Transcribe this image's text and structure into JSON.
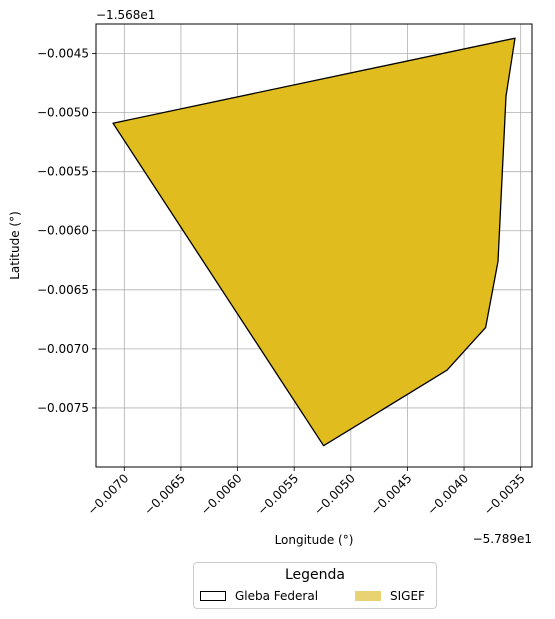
{
  "chart_data": {
    "type": "area",
    "xlabel": "Longitude (°)",
    "ylabel": "Latitude (°)",
    "x_offset_label": "−5.789e1",
    "y_offset_label": "−1.568e1",
    "xlim": [
      -0.00725,
      -0.0034
    ],
    "ylim": [
      -0.008,
      -0.00425
    ],
    "x_ticks": [
      -0.007,
      -0.0065,
      -0.006,
      -0.0055,
      -0.005,
      -0.0045,
      -0.004,
      -0.0035
    ],
    "x_tick_labels": [
      "−0.0070",
      "−0.0065",
      "−0.0060",
      "−0.0055",
      "−0.0050",
      "−0.0045",
      "−0.0040",
      "−0.0035"
    ],
    "y_ticks": [
      -0.0045,
      -0.005,
      -0.0055,
      -0.006,
      -0.0065,
      -0.007,
      -0.0075
    ],
    "y_tick_labels": [
      "−0.0045",
      "−0.0050",
      "−0.0055",
      "−0.0060",
      "−0.0065",
      "−0.0070",
      "−0.0075"
    ],
    "grid": true,
    "legend_position": "bottom-center",
    "series": [
      {
        "name": "SIGEF",
        "role": "fill",
        "color": "#e0bc1f",
        "legend_color": "#e8d272",
        "points": [
          [
            -0.0071,
            -0.00509
          ],
          [
            -0.00355,
            -0.00437
          ],
          [
            -0.00363,
            -0.00486
          ],
          [
            -0.0037,
            -0.00626
          ],
          [
            -0.00381,
            -0.00682
          ],
          [
            -0.00415,
            -0.00718
          ],
          [
            -0.00524,
            -0.00782
          ],
          [
            -0.0071,
            -0.00509
          ]
        ]
      },
      {
        "name": "Gleba Federal",
        "role": "outline",
        "color": "#000000",
        "points": [
          [
            -0.0071,
            -0.00509
          ],
          [
            -0.00355,
            -0.00437
          ],
          [
            -0.00363,
            -0.00486
          ],
          [
            -0.0037,
            -0.00626
          ],
          [
            -0.00381,
            -0.00682
          ],
          [
            -0.00415,
            -0.00718
          ],
          [
            -0.00524,
            -0.00782
          ],
          [
            -0.0071,
            -0.00509
          ]
        ]
      }
    ]
  },
  "legend": {
    "title": "Legenda",
    "items": [
      {
        "label": "Gleba Federal"
      },
      {
        "label": "SIGEF"
      }
    ]
  }
}
